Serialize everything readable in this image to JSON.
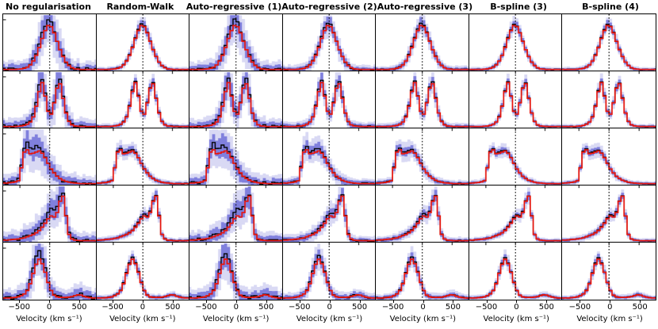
{
  "chart_data": {
    "type": "line",
    "layout": "small-multiples-grid-5x7",
    "columns": [
      "No regularisation",
      "Random-Walk",
      "Auto-regressive (1)",
      "Auto-regressive (2)",
      "Auto-regressive (3)",
      "B-spline (3)",
      "B-spline (4)"
    ],
    "xlabel": "Velocity (km s⁻¹)",
    "x_ticks": [
      -500,
      0,
      500
    ],
    "x_tick_labels": [
      "−500",
      "0",
      "500"
    ],
    "xlim": [
      -780,
      775
    ],
    "reference_line_x": 0,
    "grid": false,
    "legend": "none",
    "y_axis": "unlabeled normalised flux, 0 to 1",
    "bin_centers": [
      -775,
      -725,
      -675,
      -625,
      -575,
      -525,
      -475,
      -425,
      -375,
      -325,
      -275,
      -225,
      -175,
      -125,
      -75,
      -25,
      25,
      75,
      125,
      175,
      225,
      275,
      325,
      375,
      425,
      475,
      525,
      575,
      625,
      675,
      725,
      775
    ],
    "rows": [
      {
        "name": "profile-row-1-single-peak",
        "truth": [
          0.02,
          0.02,
          0.02,
          0.02,
          0.02,
          0.025,
          0.03,
          0.04,
          0.06,
          0.1,
          0.17,
          0.27,
          0.41,
          0.57,
          0.71,
          0.8,
          0.78,
          0.67,
          0.52,
          0.37,
          0.25,
          0.15,
          0.09,
          0.05,
          0.03,
          0.025,
          0.02,
          0.02,
          0.02,
          0.02,
          0.02,
          0.02
        ],
        "median_dev": [
          0,
          0,
          0,
          0,
          0,
          0,
          0.005,
          0.01,
          0.01,
          0.02,
          0.03,
          0.04,
          0.06,
          0.08,
          0.1,
          0.11,
          0.07,
          0.04,
          0.02,
          0.01,
          0.01,
          0.005,
          0,
          0,
          0,
          0,
          0,
          0,
          0,
          0,
          0,
          0
        ]
      },
      {
        "name": "profile-row-2-double-horn",
        "truth": [
          0.02,
          0.02,
          0.02,
          0.02,
          0.02,
          0.025,
          0.03,
          0.04,
          0.06,
          0.1,
          0.19,
          0.38,
          0.64,
          0.8,
          0.56,
          0.29,
          0.24,
          0.44,
          0.7,
          0.78,
          0.52,
          0.26,
          0.11,
          0.05,
          0.03,
          0.025,
          0.02,
          0.02,
          0.02,
          0.02,
          0.02,
          0.02
        ],
        "median_dev": [
          0,
          0,
          0,
          0,
          0,
          0,
          0,
          0.01,
          0.01,
          0.02,
          0.04,
          0.07,
          0.1,
          0.08,
          0.04,
          0.02,
          0.02,
          0.04,
          0.07,
          0.09,
          0.05,
          0.02,
          0.01,
          0,
          0,
          0,
          0,
          0,
          0,
          0,
          0,
          0
        ]
      },
      {
        "name": "profile-row-3-broad-left-plateau",
        "truth": [
          0.03,
          0.03,
          0.035,
          0.04,
          0.05,
          0.07,
          0.3,
          0.58,
          0.62,
          0.55,
          0.56,
          0.58,
          0.6,
          0.56,
          0.48,
          0.38,
          0.28,
          0.21,
          0.15,
          0.11,
          0.08,
          0.06,
          0.045,
          0.035,
          0.03,
          0.025,
          0.02,
          0.02,
          0.02,
          0.02,
          0.02,
          0.02
        ],
        "median_dev": [
          0,
          0,
          0,
          0,
          0.01,
          0.02,
          0.04,
          0.08,
          0.12,
          0.08,
          0.1,
          0.12,
          0.07,
          0.05,
          0.03,
          0.02,
          0.01,
          0.01,
          0,
          0,
          0,
          0,
          0,
          0,
          0,
          0,
          0,
          0,
          0,
          0,
          0,
          0
        ]
      },
      {
        "name": "profile-row-4-skewed-right-peak",
        "truth": [
          0.03,
          0.03,
          0.035,
          0.04,
          0.045,
          0.05,
          0.06,
          0.07,
          0.09,
          0.11,
          0.13,
          0.16,
          0.2,
          0.26,
          0.33,
          0.41,
          0.46,
          0.44,
          0.52,
          0.72,
          0.81,
          0.46,
          0.13,
          0.05,
          0.03,
          0.025,
          0.02,
          0.02,
          0.02,
          0.02,
          0.02,
          0.02
        ],
        "median_dev": [
          0,
          0,
          0,
          0,
          0,
          0.005,
          0.01,
          0.01,
          0.02,
          0.02,
          0.03,
          0.04,
          0.05,
          0.07,
          0.09,
          0.11,
          0.12,
          0.12,
          0.1,
          0.06,
          0.03,
          0.02,
          0.01,
          0,
          0,
          0,
          0,
          0,
          0,
          0,
          0,
          0
        ]
      },
      {
        "name": "profile-row-5-blue-peak-with-red-bump",
        "truth": [
          0.03,
          0.03,
          0.03,
          0.035,
          0.04,
          0.05,
          0.07,
          0.1,
          0.16,
          0.28,
          0.46,
          0.62,
          0.71,
          0.63,
          0.48,
          0.3,
          0.16,
          0.08,
          0.05,
          0.04,
          0.04,
          0.04,
          0.045,
          0.055,
          0.07,
          0.085,
          0.08,
          0.06,
          0.045,
          0.035,
          0.03,
          0.03
        ],
        "median_dev": [
          0,
          0,
          0,
          0,
          0,
          0.01,
          0.01,
          0.02,
          0.03,
          0.05,
          0.08,
          0.12,
          0.13,
          0.09,
          0.05,
          0.02,
          0.01,
          0,
          0,
          0,
          0,
          0,
          0,
          0.005,
          0.01,
          0.01,
          0.01,
          0,
          0,
          0,
          0,
          0
        ]
      }
    ],
    "column_params": [
      {
        "band_scale": 1.0,
        "dev_scale": 1.0
      },
      {
        "band_scale": 0.33,
        "dev_scale": 0.25
      },
      {
        "band_scale": 0.95,
        "dev_scale": 0.9
      },
      {
        "band_scale": 0.55,
        "dev_scale": 0.45
      },
      {
        "band_scale": 0.42,
        "dev_scale": 0.3
      },
      {
        "band_scale": 0.3,
        "dev_scale": 0.18
      },
      {
        "band_scale": 0.3,
        "dev_scale": 0.18
      }
    ],
    "band_model": {
      "inner_base": 0.045,
      "inner_amp": 0.19,
      "outer_base": 0.09,
      "outer_amp": 0.4
    },
    "colors": {
      "outer_band": "#d9d9f4",
      "inner_band": "#8080dd",
      "median_line": "#000000",
      "truth_line": "#e8140c",
      "reference_line": "#000000",
      "frame": "#000000"
    }
  }
}
